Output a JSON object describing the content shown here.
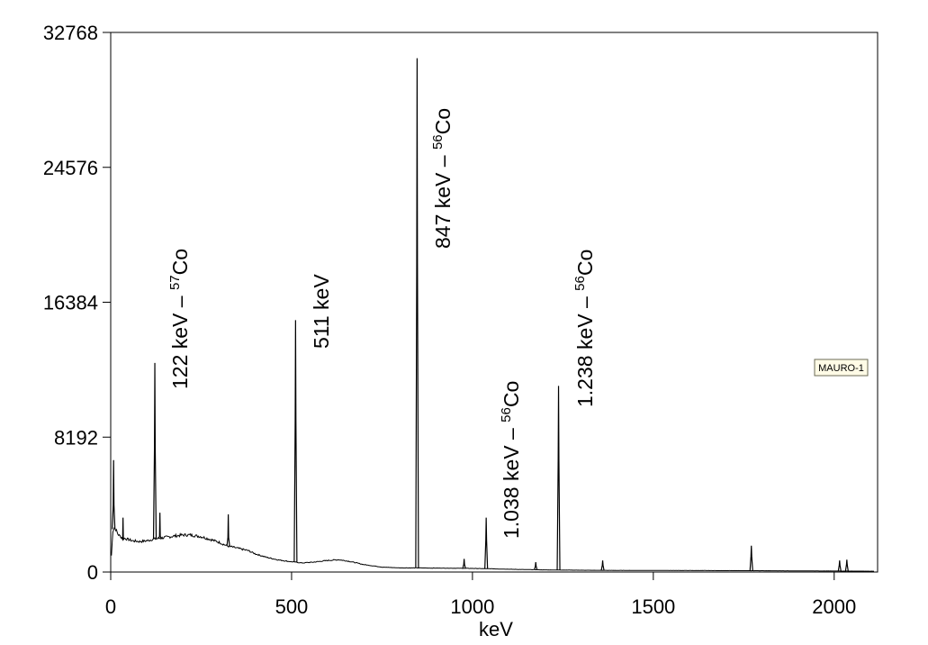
{
  "chart_data": {
    "type": "line",
    "xlabel": "keV",
    "ylabel": "",
    "xlim": [
      0,
      2120
    ],
    "ylim": [
      0,
      32768
    ],
    "x_ticks": [
      0,
      500,
      1000,
      1500,
      2000
    ],
    "x_tick_labels": [
      "0",
      "500",
      "1000",
      "1500",
      "2000"
    ],
    "y_ticks": [
      0,
      8192,
      16384,
      24576,
      32768
    ],
    "y_tick_labels": [
      "0",
      "8192",
      "16384",
      "24576",
      "32768"
    ],
    "grid": false,
    "legend": {
      "position": "right",
      "label": "MAURO-1"
    },
    "series": [
      {
        "name": "MAURO-1",
        "color": "#000000",
        "baseline": [
          [
            2,
            1000
          ],
          [
            6,
            2500
          ],
          [
            10,
            2700
          ],
          [
            14,
            2600
          ],
          [
            20,
            2300
          ],
          [
            30,
            2100
          ],
          [
            45,
            2000
          ],
          [
            60,
            1900
          ],
          [
            80,
            1850
          ],
          [
            100,
            1900
          ],
          [
            120,
            2000
          ],
          [
            150,
            2100
          ],
          [
            180,
            2200
          ],
          [
            200,
            2250
          ],
          [
            220,
            2250
          ],
          [
            250,
            2150
          ],
          [
            280,
            1950
          ],
          [
            300,
            1800
          ],
          [
            320,
            1600
          ],
          [
            340,
            1500
          ],
          [
            360,
            1400
          ],
          [
            380,
            1300
          ],
          [
            400,
            1100
          ],
          [
            430,
            900
          ],
          [
            460,
            750
          ],
          [
            490,
            650
          ],
          [
            510,
            600
          ],
          [
            530,
            550
          ],
          [
            560,
            600
          ],
          [
            600,
            700
          ],
          [
            630,
            750
          ],
          [
            660,
            650
          ],
          [
            700,
            450
          ],
          [
            750,
            300
          ],
          [
            800,
            250
          ],
          [
            850,
            250
          ],
          [
            900,
            240
          ],
          [
            950,
            230
          ],
          [
            1000,
            220
          ],
          [
            1050,
            200
          ],
          [
            1100,
            170
          ],
          [
            1150,
            150
          ],
          [
            1200,
            130
          ],
          [
            1250,
            120
          ],
          [
            1300,
            110
          ],
          [
            1400,
            100
          ],
          [
            1500,
            95
          ],
          [
            1600,
            90
          ],
          [
            1700,
            85
          ],
          [
            1800,
            80
          ],
          [
            1900,
            70
          ],
          [
            2000,
            60
          ],
          [
            2110,
            50
          ]
        ],
        "peaks": [
          {
            "x": 8,
            "y": 6800
          },
          {
            "x": 34,
            "y": 3300
          },
          {
            "x": 122,
            "y": 12700
          },
          {
            "x": 136,
            "y": 3600
          },
          {
            "x": 325,
            "y": 3500
          },
          {
            "x": 511,
            "y": 15300
          },
          {
            "x": 847,
            "y": 31200
          },
          {
            "x": 977,
            "y": 800
          },
          {
            "x": 1038,
            "y": 3300
          },
          {
            "x": 1175,
            "y": 600
          },
          {
            "x": 1238,
            "y": 11300
          },
          {
            "x": 1360,
            "y": 700
          },
          {
            "x": 1771,
            "y": 1600
          },
          {
            "x": 2015,
            "y": 700
          },
          {
            "x": 2035,
            "y": 750
          }
        ]
      }
    ],
    "annotations": [
      {
        "main": "122 keV – ",
        "sup": "57",
        "suffix": "Co",
        "x": 122
      },
      {
        "main": "511 keV",
        "sup": "",
        "suffix": "",
        "x": 511
      },
      {
        "main": "847 keV – ",
        "sup": "56",
        "suffix": "Co",
        "x": 847
      },
      {
        "main": "1.038 keV – ",
        "sup": "56",
        "suffix": "Co",
        "x": 1038
      },
      {
        "main": "1.238 keV – ",
        "sup": "56",
        "suffix": "Co",
        "x": 1238
      }
    ]
  }
}
